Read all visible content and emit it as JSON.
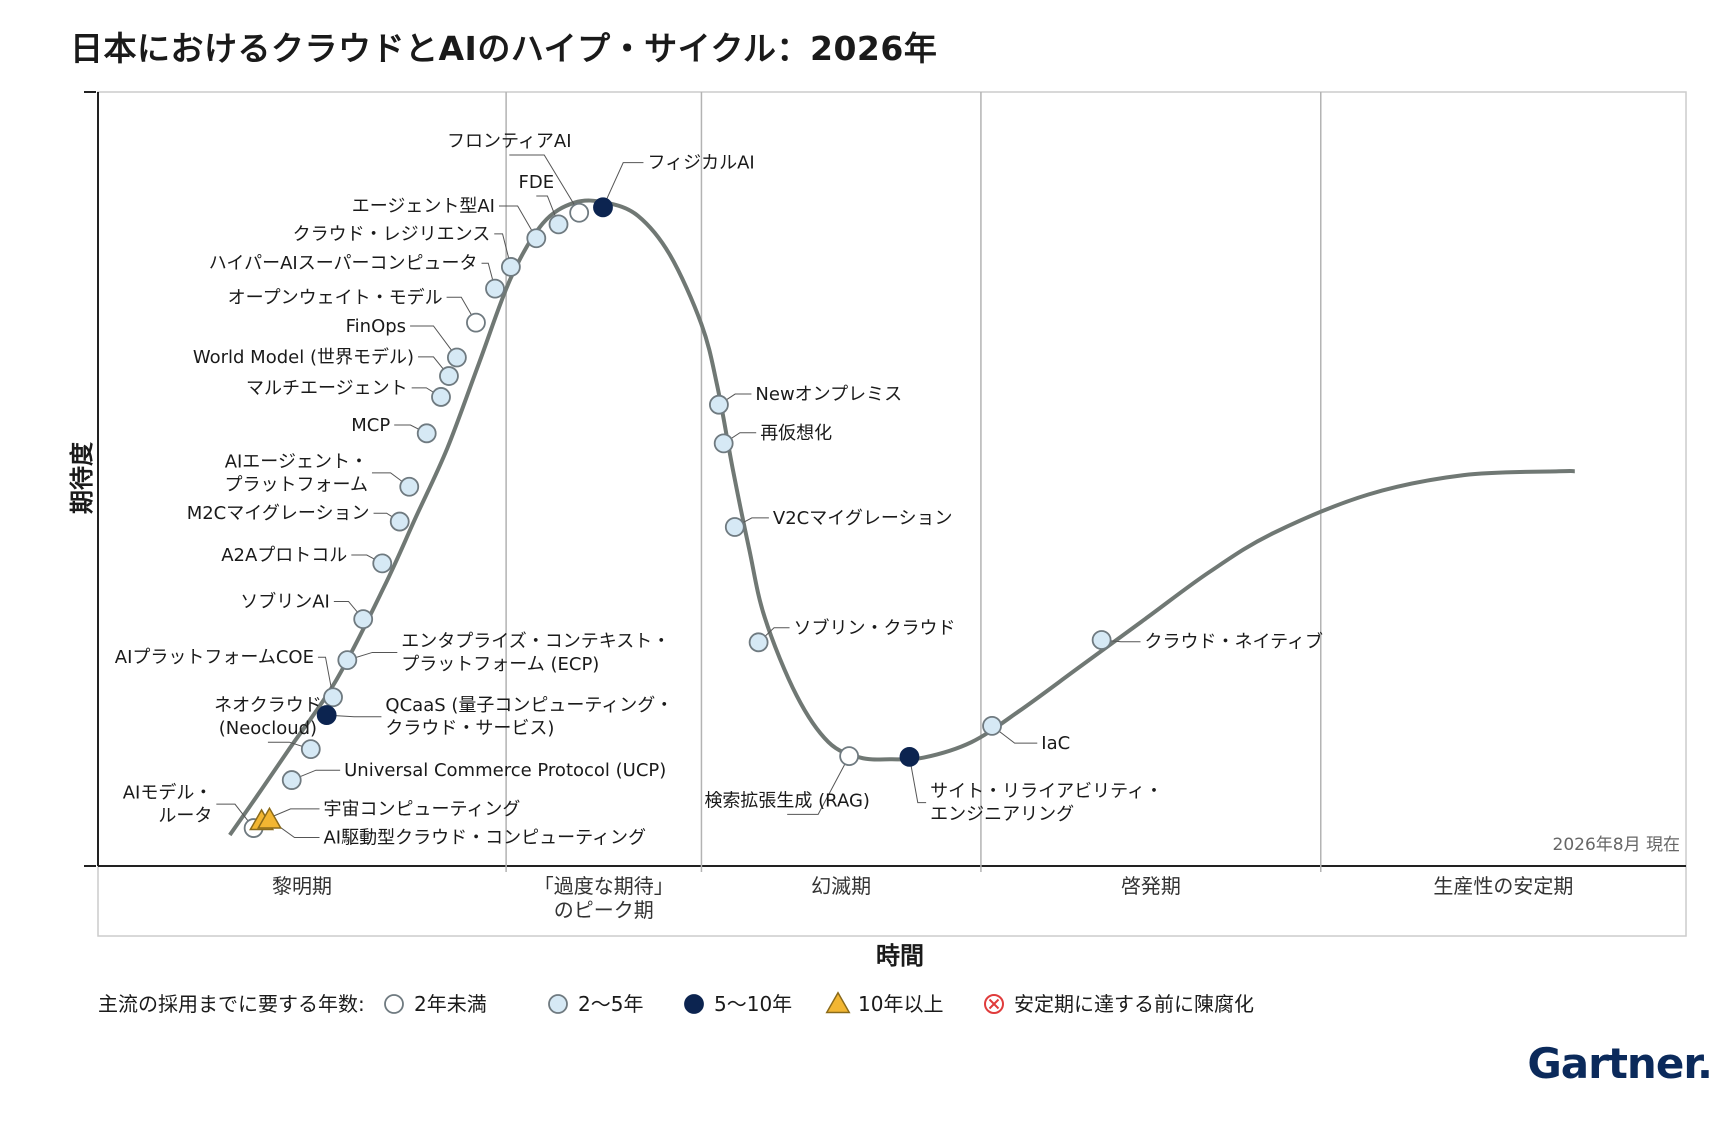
{
  "title": "日本におけるクラウドとAIのハイプ・サイクル：2026年",
  "logo": "Gartner.",
  "colors": {
    "curve": "#707874",
    "plot_border": "#cccccc",
    "phase_divider": "#b3b3b3",
    "under_2": "#ffffff",
    "y2_5": "#d6e9f5",
    "y5_10": "#0c2450",
    "over_10": "#f2b632",
    "obsolete": "#e03c3c",
    "marker_stroke": "#6f7a80"
  },
  "chart_data": {
    "type": "hype-cycle",
    "title": "日本におけるクラウドとAIのハイプ・サイクル：2026年",
    "xlabel": "時間",
    "ylabel": "期待度",
    "as_of": "2026年8月 現在",
    "phases": [
      "黎明期",
      "「過度な期待」のピーク期",
      "幻滅期",
      "啓発期",
      "生産性の安定期"
    ],
    "phase_labels": [
      [
        "黎明期"
      ],
      [
        "「過度な期待」",
        "のピーク期"
      ],
      [
        "幻滅期"
      ],
      [
        "啓発期"
      ],
      [
        "生産性の安定期"
      ]
    ],
    "phase_bounds": [
      0.0,
      0.257,
      0.38,
      0.556,
      0.77,
      1.0
    ],
    "curve": [
      [
        0.083,
        0.04
      ],
      [
        0.1,
        0.09
      ],
      [
        0.12,
        0.15
      ],
      [
        0.15,
        0.24
      ],
      [
        0.18,
        0.36
      ],
      [
        0.2,
        0.45
      ],
      [
        0.22,
        0.54
      ],
      [
        0.24,
        0.65
      ],
      [
        0.26,
        0.76
      ],
      [
        0.28,
        0.83
      ],
      [
        0.3,
        0.857
      ],
      [
        0.32,
        0.857
      ],
      [
        0.34,
        0.84
      ],
      [
        0.36,
        0.79
      ],
      [
        0.38,
        0.7
      ],
      [
        0.39,
        0.62
      ],
      [
        0.4,
        0.51
      ],
      [
        0.41,
        0.41
      ],
      [
        0.42,
        0.32
      ],
      [
        0.44,
        0.22
      ],
      [
        0.46,
        0.16
      ],
      [
        0.48,
        0.14
      ],
      [
        0.5,
        0.138
      ],
      [
        0.52,
        0.14
      ],
      [
        0.55,
        0.16
      ],
      [
        0.58,
        0.2
      ],
      [
        0.62,
        0.26
      ],
      [
        0.66,
        0.32
      ],
      [
        0.7,
        0.38
      ],
      [
        0.74,
        0.43
      ],
      [
        0.8,
        0.48
      ],
      [
        0.86,
        0.505
      ],
      [
        0.92,
        0.51
      ],
      [
        0.93,
        0.51
      ]
    ],
    "legend_title": "主流の採用までに要する年数:",
    "legend": [
      {
        "key": "under_2",
        "label": "2年未満"
      },
      {
        "key": "y2_5",
        "label": "2～5年"
      },
      {
        "key": "y5_10",
        "label": "5～10年"
      },
      {
        "key": "over_10",
        "label": "10年以上"
      },
      {
        "key": "obsolete",
        "label": "安定期に達する前に陳腐化"
      }
    ],
    "technologies": [
      {
        "lines": [
          "フィジカルAI"
        ],
        "x": 0.318,
        "y": 0.851,
        "cat": "y5_10",
        "tx": 0.346,
        "ty": 0.901,
        "anchor": "start"
      },
      {
        "lines": [
          "フロンティアAI"
        ],
        "x": 0.303,
        "y": 0.844,
        "cat": "under_2",
        "tx": 0.259,
        "ty": 0.929,
        "anchor": "middle"
      },
      {
        "lines": [
          "FDE"
        ],
        "x": 0.29,
        "y": 0.829,
        "cat": "y2_5",
        "tx": 0.276,
        "ty": 0.876,
        "anchor": "middle"
      },
      {
        "lines": [
          "エージェント型AI"
        ],
        "x": 0.276,
        "y": 0.811,
        "cat": "y2_5",
        "tx": 0.25,
        "ty": 0.845,
        "anchor": "end"
      },
      {
        "lines": [
          "クラウド・レジリエンス"
        ],
        "x": 0.26,
        "y": 0.774,
        "cat": "y2_5",
        "tx": 0.247,
        "ty": 0.809,
        "anchor": "end"
      },
      {
        "lines": [
          "ハイパーAIスーパーコンピュータ"
        ],
        "x": 0.25,
        "y": 0.746,
        "cat": "y2_5",
        "tx": 0.239,
        "ty": 0.771,
        "anchor": "end"
      },
      {
        "lines": [
          "オープンウェイト・モデル"
        ],
        "x": 0.238,
        "y": 0.702,
        "cat": "under_2",
        "tx": 0.217,
        "ty": 0.727,
        "anchor": "end"
      },
      {
        "lines": [
          "FinOps"
        ],
        "x": 0.226,
        "y": 0.657,
        "cat": "y2_5",
        "tx": 0.194,
        "ty": 0.69,
        "anchor": "end"
      },
      {
        "lines": [
          "World Model (世界モデル)"
        ],
        "x": 0.221,
        "y": 0.633,
        "cat": "y2_5",
        "tx": 0.199,
        "ty": 0.65,
        "anchor": "end"
      },
      {
        "lines": [
          "マルチエージェント"
        ],
        "x": 0.216,
        "y": 0.606,
        "cat": "y2_5",
        "tx": 0.195,
        "ty": 0.61,
        "anchor": "end"
      },
      {
        "lines": [
          "MCP"
        ],
        "x": 0.207,
        "y": 0.559,
        "cat": "y2_5",
        "tx": 0.184,
        "ty": 0.562,
        "anchor": "end"
      },
      {
        "lines": [
          "AIエージェント・",
          "プラットフォーム"
        ],
        "x": 0.196,
        "y": 0.49,
        "cat": "y2_5",
        "tx": 0.17,
        "ty": 0.515,
        "anchor": "end"
      },
      {
        "lines": [
          "M2Cマイグレーション"
        ],
        "x": 0.19,
        "y": 0.445,
        "cat": "y2_5",
        "tx": 0.171,
        "ty": 0.448,
        "anchor": "end"
      },
      {
        "lines": [
          "A2Aプロトコル"
        ],
        "x": 0.179,
        "y": 0.391,
        "cat": "y2_5",
        "tx": 0.157,
        "ty": 0.394,
        "anchor": "end"
      },
      {
        "lines": [
          "ソブリンAI"
        ],
        "x": 0.167,
        "y": 0.319,
        "cat": "y2_5",
        "tx": 0.146,
        "ty": 0.334,
        "anchor": "end"
      },
      {
        "lines": [
          "エンタプライズ・コンテキスト・",
          "プラットフォーム (ECP)"
        ],
        "x": 0.157,
        "y": 0.266,
        "cat": "y2_5",
        "tx": 0.191,
        "ty": 0.283,
        "anchor": "start"
      },
      {
        "lines": [
          "AIプラットフォームCOE"
        ],
        "x": 0.148,
        "y": 0.218,
        "cat": "y2_5",
        "tx": 0.136,
        "ty": 0.262,
        "anchor": "end"
      },
      {
        "lines": [
          "QCaaS (量子コンピューティング・",
          "クラウド・サービス)"
        ],
        "x": 0.144,
        "y": 0.195,
        "cat": "y5_10",
        "tx": 0.181,
        "ty": 0.2,
        "anchor": "start"
      },
      {
        "lines": [
          "ネオクラウド",
          "(Neocloud)"
        ],
        "x": 0.134,
        "y": 0.151,
        "cat": "y2_5",
        "tx": 0.107,
        "ty": 0.2,
        "anchor": "middle"
      },
      {
        "lines": [
          "Universal Commerce Protocol (UCP)"
        ],
        "x": 0.122,
        "y": 0.111,
        "cat": "y2_5",
        "tx": 0.155,
        "ty": 0.116,
        "anchor": "start"
      },
      {
        "lines": [
          "AIモデル・",
          "ルータ"
        ],
        "x": 0.098,
        "y": 0.049,
        "cat": "under_2",
        "tx": 0.072,
        "ty": 0.087,
        "anchor": "end"
      },
      {
        "lines": [
          "宇宙コンピューティング"
        ],
        "x": 0.103,
        "y": 0.058,
        "cat": "over_10",
        "tx": 0.142,
        "ty": 0.066,
        "anchor": "start"
      },
      {
        "lines": [
          "AI駆動型クラウド・コンピューティング"
        ],
        "x": 0.108,
        "y": 0.06,
        "cat": "over_10",
        "tx": 0.142,
        "ty": 0.029,
        "anchor": "start"
      },
      {
        "lines": [
          "Newオンプレミス"
        ],
        "x": 0.391,
        "y": 0.596,
        "cat": "y2_5",
        "tx": 0.414,
        "ty": 0.602,
        "anchor": "start"
      },
      {
        "lines": [
          "再仮想化"
        ],
        "x": 0.394,
        "y": 0.546,
        "cat": "y2_5",
        "tx": 0.417,
        "ty": 0.552,
        "anchor": "start"
      },
      {
        "lines": [
          "V2Cマイグレーション"
        ],
        "x": 0.401,
        "y": 0.438,
        "cat": "y2_5",
        "tx": 0.425,
        "ty": 0.442,
        "anchor": "start"
      },
      {
        "lines": [
          "ソブリン・クラウド"
        ],
        "x": 0.416,
        "y": 0.289,
        "cat": "y2_5",
        "tx": 0.438,
        "ty": 0.3,
        "anchor": "start"
      },
      {
        "lines": [
          "検索拡張生成 (RAG)"
        ],
        "x": 0.473,
        "y": 0.142,
        "cat": "under_2",
        "tx": 0.434,
        "ty": 0.077,
        "anchor": "middle"
      },
      {
        "lines": [
          "サイト・リライアビリティ・",
          "エンジニアリング"
        ],
        "x": 0.511,
        "y": 0.141,
        "cat": "y5_10",
        "tx": 0.524,
        "ty": 0.089,
        "anchor": "start"
      },
      {
        "lines": [
          "IaC"
        ],
        "x": 0.563,
        "y": 0.181,
        "cat": "y2_5",
        "tx": 0.594,
        "ty": 0.151,
        "anchor": "start"
      },
      {
        "lines": [
          "クラウド・ネイティブ"
        ],
        "x": 0.632,
        "y": 0.292,
        "cat": "y2_5",
        "tx": 0.659,
        "ty": 0.282,
        "anchor": "start"
      }
    ]
  }
}
